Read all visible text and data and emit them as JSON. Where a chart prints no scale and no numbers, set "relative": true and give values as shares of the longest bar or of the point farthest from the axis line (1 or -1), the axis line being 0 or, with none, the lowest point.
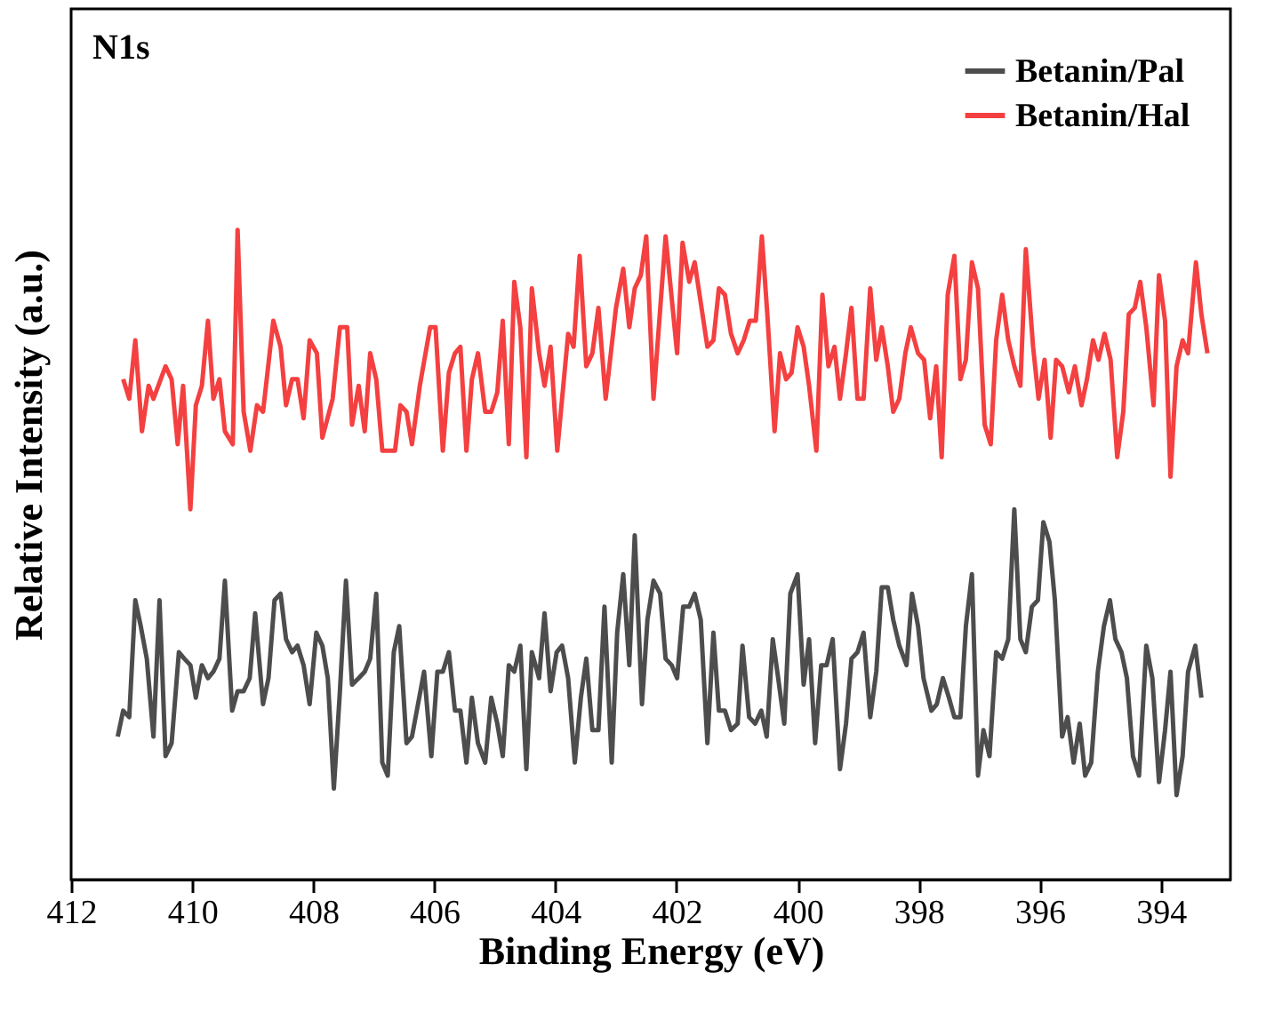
{
  "chart_data": {
    "type": "line",
    "relative": true,
    "xlabel": "Binding Energy (eV)",
    "ylabel": "Relative Intensity (a.u.)",
    "annotations": [
      "N1s"
    ],
    "xlim": [
      412,
      392.85
    ],
    "xticks": [
      412,
      410,
      408,
      406,
      404,
      402,
      400,
      398,
      396,
      394
    ],
    "grid": false,
    "legend": "top right",
    "marker": "none",
    "line_style": "solid",
    "series": [
      {
        "name": "Betanin/Pal",
        "color": "#4d4d4d",
        "x": [
          411.23,
          411.14,
          411.04,
          410.94,
          410.85,
          410.75,
          410.64,
          410.54,
          410.44,
          410.34,
          410.22,
          410.13,
          410.03,
          409.94,
          409.84,
          409.74,
          409.65,
          409.55,
          409.46,
          409.34,
          409.25,
          409.15,
          409.05,
          408.96,
          408.83,
          408.74,
          408.64,
          408.54,
          408.45,
          408.35,
          408.26,
          408.16,
          408.06,
          407.95,
          407.85,
          407.76,
          407.66,
          407.56,
          407.46,
          407.36,
          407.25,
          407.15,
          407.06,
          406.96,
          406.86,
          406.77,
          406.67,
          406.58,
          406.46,
          406.37,
          406.29,
          406.17,
          406.05,
          405.95,
          405.86,
          405.76,
          405.66,
          405.57,
          405.47,
          405.38,
          405.28,
          405.16,
          405.06,
          404.96,
          404.87,
          404.77,
          404.68,
          404.58,
          404.48,
          404.39,
          404.27,
          404.18,
          404.08,
          403.98,
          403.89,
          403.79,
          403.68,
          403.58,
          403.49,
          403.39,
          403.29,
          403.19,
          403.07,
          402.98,
          402.88,
          402.78,
          402.69,
          402.57,
          402.48,
          402.38,
          402.27,
          402.18,
          402.08,
          401.99,
          401.89,
          401.79,
          401.7,
          401.6,
          401.49,
          401.39,
          401.3,
          401.2,
          401.1,
          400.99,
          400.91,
          400.8,
          400.7,
          400.6,
          400.51,
          400.41,
          400.32,
          400.22,
          400.12,
          400.0,
          399.9,
          399.81,
          399.71,
          399.61,
          399.52,
          399.42,
          399.3,
          399.2,
          399.11,
          399.01,
          398.91,
          398.8,
          398.7,
          398.61,
          398.51,
          398.42,
          398.32,
          398.2,
          398.11,
          398.01,
          397.92,
          397.79,
          397.7,
          397.6,
          397.5,
          397.41,
          397.31,
          397.22,
          397.12,
          397.02,
          396.93,
          396.83,
          396.72,
          396.62,
          396.52,
          396.42,
          396.32,
          396.23,
          396.13,
          396.03,
          395.94,
          395.84,
          395.75,
          395.63,
          395.54,
          395.44,
          395.34,
          395.25,
          395.15,
          395.04,
          394.94,
          394.84,
          394.75,
          394.65,
          394.56,
          394.46,
          394.36,
          394.24,
          394.14,
          394.03,
          393.93,
          393.84,
          393.74,
          393.64,
          393.55,
          393.43,
          393.33
        ],
        "values": [
          0.22,
          0.26,
          0.25,
          0.43,
          0.39,
          0.34,
          0.22,
          0.43,
          0.19,
          0.21,
          0.35,
          0.34,
          0.33,
          0.28,
          0.33,
          0.31,
          0.32,
          0.34,
          0.46,
          0.26,
          0.29,
          0.29,
          0.31,
          0.41,
          0.27,
          0.31,
          0.43,
          0.44,
          0.37,
          0.35,
          0.36,
          0.33,
          0.27,
          0.38,
          0.36,
          0.31,
          0.14,
          0.29,
          0.46,
          0.3,
          0.31,
          0.32,
          0.34,
          0.44,
          0.18,
          0.16,
          0.35,
          0.39,
          0.21,
          0.22,
          0.26,
          0.32,
          0.19,
          0.32,
          0.32,
          0.35,
          0.26,
          0.26,
          0.18,
          0.28,
          0.21,
          0.18,
          0.28,
          0.24,
          0.19,
          0.33,
          0.32,
          0.36,
          0.17,
          0.35,
          0.31,
          0.41,
          0.29,
          0.35,
          0.36,
          0.31,
          0.18,
          0.28,
          0.34,
          0.23,
          0.23,
          0.42,
          0.18,
          0.38,
          0.47,
          0.33,
          0.53,
          0.27,
          0.4,
          0.46,
          0.44,
          0.34,
          0.33,
          0.31,
          0.42,
          0.42,
          0.44,
          0.4,
          0.21,
          0.38,
          0.26,
          0.26,
          0.23,
          0.24,
          0.36,
          0.25,
          0.24,
          0.26,
          0.22,
          0.37,
          0.31,
          0.24,
          0.44,
          0.47,
          0.3,
          0.37,
          0.21,
          0.33,
          0.33,
          0.37,
          0.17,
          0.24,
          0.34,
          0.35,
          0.38,
          0.25,
          0.32,
          0.45,
          0.45,
          0.4,
          0.36,
          0.33,
          0.44,
          0.39,
          0.31,
          0.26,
          0.27,
          0.31,
          0.28,
          0.25,
          0.25,
          0.39,
          0.47,
          0.16,
          0.23,
          0.19,
          0.35,
          0.34,
          0.37,
          0.57,
          0.37,
          0.35,
          0.42,
          0.43,
          0.55,
          0.52,
          0.43,
          0.22,
          0.25,
          0.18,
          0.24,
          0.16,
          0.18,
          0.32,
          0.39,
          0.43,
          0.37,
          0.35,
          0.31,
          0.19,
          0.16,
          0.36,
          0.31,
          0.15,
          0.23,
          0.32,
          0.13,
          0.19,
          0.32,
          0.36,
          0.28
        ]
      },
      {
        "name": "Betanin/Hal",
        "color": "#f44040",
        "x": [
          411.14,
          411.04,
          410.94,
          410.83,
          410.72,
          410.64,
          410.44,
          410.34,
          410.24,
          410.15,
          410.03,
          409.94,
          409.84,
          409.74,
          409.65,
          409.55,
          409.46,
          409.33,
          409.25,
          409.15,
          409.04,
          408.93,
          408.83,
          408.66,
          408.54,
          408.45,
          408.35,
          408.26,
          408.16,
          408.06,
          407.94,
          407.85,
          407.68,
          407.56,
          407.44,
          407.36,
          407.25,
          407.15,
          407.06,
          406.96,
          406.86,
          406.77,
          406.65,
          406.56,
          406.46,
          406.37,
          406.24,
          406.07,
          405.98,
          405.86,
          405.76,
          405.66,
          405.57,
          405.47,
          405.38,
          405.28,
          405.16,
          405.06,
          404.96,
          404.87,
          404.77,
          404.68,
          404.58,
          404.48,
          404.39,
          404.27,
          404.18,
          404.08,
          403.97,
          403.79,
          403.7,
          403.6,
          403.49,
          403.39,
          403.29,
          403.17,
          403.0,
          402.88,
          402.78,
          402.69,
          402.59,
          402.5,
          402.38,
          402.18,
          401.99,
          401.9,
          401.79,
          401.7,
          401.49,
          401.39,
          401.3,
          401.2,
          401.1,
          400.99,
          400.89,
          400.79,
          400.69,
          400.59,
          400.5,
          400.38,
          400.29,
          400.19,
          400.1,
          400.0,
          399.9,
          399.81,
          399.69,
          399.59,
          399.49,
          399.39,
          399.3,
          399.2,
          399.11,
          399.01,
          398.91,
          398.8,
          398.7,
          398.61,
          398.51,
          398.42,
          398.32,
          398.22,
          398.13,
          398.01,
          397.91,
          397.81,
          397.71,
          397.62,
          397.52,
          397.41,
          397.31,
          397.22,
          397.12,
          397.02,
          396.91,
          396.81,
          396.72,
          396.62,
          396.52,
          396.42,
          396.32,
          396.23,
          396.11,
          396.02,
          395.92,
          395.82,
          395.73,
          395.63,
          395.52,
          395.42,
          395.31,
          395.22,
          395.12,
          395.03,
          394.93,
          394.83,
          394.72,
          394.62,
          394.53,
          394.43,
          394.34,
          394.24,
          394.12,
          394.03,
          393.93,
          393.84,
          393.74,
          393.64,
          393.55,
          393.42,
          393.33,
          393.23
        ],
        "values": [
          0.77,
          0.74,
          0.83,
          0.69,
          0.76,
          0.74,
          0.79,
          0.77,
          0.67,
          0.76,
          0.57,
          0.73,
          0.76,
          0.86,
          0.74,
          0.77,
          0.69,
          0.67,
          1.0,
          0.72,
          0.66,
          0.73,
          0.72,
          0.86,
          0.82,
          0.73,
          0.77,
          0.77,
          0.71,
          0.83,
          0.81,
          0.68,
          0.74,
          0.85,
          0.85,
          0.7,
          0.76,
          0.69,
          0.81,
          0.77,
          0.66,
          0.66,
          0.66,
          0.73,
          0.72,
          0.67,
          0.76,
          0.85,
          0.85,
          0.66,
          0.78,
          0.81,
          0.82,
          0.66,
          0.77,
          0.81,
          0.72,
          0.72,
          0.75,
          0.86,
          0.67,
          0.92,
          0.85,
          0.65,
          0.91,
          0.81,
          0.76,
          0.82,
          0.66,
          0.84,
          0.82,
          0.96,
          0.79,
          0.81,
          0.88,
          0.74,
          0.88,
          0.94,
          0.85,
          0.91,
          0.93,
          0.99,
          0.74,
          0.99,
          0.81,
          0.98,
          0.92,
          0.95,
          0.82,
          0.83,
          0.91,
          0.9,
          0.84,
          0.81,
          0.83,
          0.86,
          0.86,
          0.99,
          0.87,
          0.69,
          0.81,
          0.77,
          0.78,
          0.85,
          0.82,
          0.76,
          0.66,
          0.9,
          0.79,
          0.82,
          0.74,
          0.81,
          0.88,
          0.74,
          0.74,
          0.91,
          0.8,
          0.85,
          0.79,
          0.72,
          0.74,
          0.81,
          0.85,
          0.81,
          0.8,
          0.71,
          0.79,
          0.65,
          0.9,
          0.96,
          0.77,
          0.8,
          0.95,
          0.91,
          0.7,
          0.67,
          0.83,
          0.9,
          0.83,
          0.79,
          0.76,
          0.97,
          0.82,
          0.74,
          0.8,
          0.68,
          0.8,
          0.79,
          0.75,
          0.79,
          0.73,
          0.77,
          0.83,
          0.8,
          0.84,
          0.8,
          0.65,
          0.72,
          0.87,
          0.88,
          0.92,
          0.85,
          0.73,
          0.93,
          0.86,
          0.62,
          0.79,
          0.83,
          0.81,
          0.95,
          0.87,
          0.81
        ]
      }
    ]
  }
}
